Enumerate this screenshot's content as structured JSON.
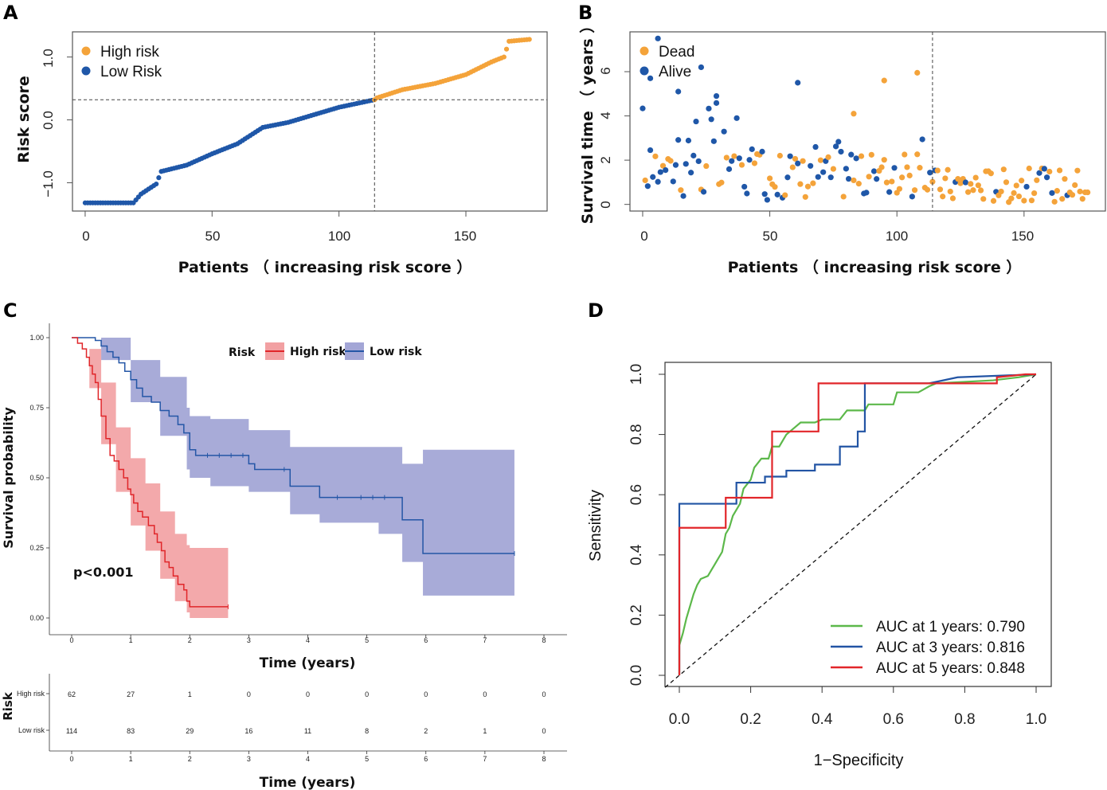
{
  "panels": {
    "A": "A",
    "B": "B",
    "C": "C",
    "D": "D"
  },
  "colors": {
    "high": "#f4a33a",
    "low": "#1f57a8",
    "km_high": "#e0262a",
    "km_high_band": "#f2a0a2",
    "km_low": "#2456a6",
    "km_low_band": "#a3a6d6",
    "roc1": "#5cb84a",
    "roc3": "#2254a4",
    "roc5": "#e2262a"
  },
  "chart_data": [
    {
      "id": "A",
      "type": "scatter",
      "xlabel": "Patients （ increasing risk score ）",
      "ylabel": "Risk score",
      "xticks": [
        "0",
        "50",
        "100",
        "150"
      ],
      "yticks": [
        "−1.0",
        "0.0",
        "1.0"
      ],
      "xlim": [
        -5,
        182
      ],
      "ylim": [
        -1.45,
        1.4
      ],
      "cutoff_x": 114,
      "cutoff_y": 0.32,
      "legend": [
        "High risk",
        "Low Risk"
      ],
      "n_patients": 176
    },
    {
      "id": "B",
      "type": "scatter",
      "xlabel": "Patients （ increasing risk score ）",
      "ylabel": "Survival time （ years ）",
      "xticks": [
        "0",
        "50",
        "100",
        "150"
      ],
      "yticks": [
        "0",
        "2",
        "4",
        "6"
      ],
      "xlim": [
        -5,
        182
      ],
      "ylim": [
        -0.3,
        7.8
      ],
      "cutoff_x": 114,
      "legend": [
        "Dead",
        "Alive"
      ]
    },
    {
      "id": "C",
      "type": "line",
      "title": "Risk",
      "xlabel": "Time (years)",
      "ylabel": "Survival probability",
      "xticks": [
        "0",
        "1",
        "2",
        "3",
        "4",
        "5",
        "6",
        "7",
        "8"
      ],
      "yticks": [
        "0.00",
        "0.25",
        "0.50",
        "0.75",
        "1.00"
      ],
      "xlim": [
        -0.4,
        8.4
      ],
      "ylim": [
        -0.05,
        1.05
      ],
      "pvalue": "p<0.001",
      "series": [
        {
          "name": "High risk",
          "steps": [
            [
              0,
              1.0
            ],
            [
              0.1,
              0.98
            ],
            [
              0.18,
              0.96
            ],
            [
              0.25,
              0.93
            ],
            [
              0.3,
              0.9
            ],
            [
              0.35,
              0.87
            ],
            [
              0.4,
              0.84
            ],
            [
              0.45,
              0.78
            ],
            [
              0.5,
              0.72
            ],
            [
              0.58,
              0.64
            ],
            [
              0.65,
              0.58
            ],
            [
              0.72,
              0.56
            ],
            [
              0.8,
              0.53
            ],
            [
              0.88,
              0.5
            ],
            [
              0.95,
              0.46
            ],
            [
              1.0,
              0.44
            ],
            [
              1.05,
              0.41
            ],
            [
              1.12,
              0.38
            ],
            [
              1.2,
              0.36
            ],
            [
              1.3,
              0.33
            ],
            [
              1.4,
              0.3
            ],
            [
              1.45,
              0.27
            ],
            [
              1.52,
              0.24
            ],
            [
              1.58,
              0.2
            ],
            [
              1.65,
              0.18
            ],
            [
              1.72,
              0.15
            ],
            [
              1.8,
              0.12
            ],
            [
              1.9,
              0.1
            ],
            [
              1.95,
              0.06
            ],
            [
              2.0,
              0.04
            ],
            [
              2.65,
              0.04
            ]
          ],
          "lower": [
            [
              0,
              1.0
            ],
            [
              0.3,
              0.82
            ],
            [
              0.5,
              0.62
            ],
            [
              0.75,
              0.45
            ],
            [
              1.0,
              0.33
            ],
            [
              1.25,
              0.24
            ],
            [
              1.5,
              0.14
            ],
            [
              1.75,
              0.06
            ],
            [
              1.95,
              0.02
            ],
            [
              2.0,
              0.0
            ],
            [
              2.65,
              0.0
            ]
          ],
          "upper": [
            [
              0,
              1.0
            ],
            [
              0.3,
              0.96
            ],
            [
              0.5,
              0.84
            ],
            [
              0.75,
              0.68
            ],
            [
              1.0,
              0.57
            ],
            [
              1.25,
              0.48
            ],
            [
              1.5,
              0.38
            ],
            [
              1.75,
              0.3
            ],
            [
              1.95,
              0.26
            ],
            [
              2.0,
              0.25
            ],
            [
              2.65,
              0.25
            ]
          ]
        },
        {
          "name": "Low risk",
          "steps": [
            [
              0,
              1.0
            ],
            [
              0.4,
              0.99
            ],
            [
              0.5,
              0.97
            ],
            [
              0.6,
              0.95
            ],
            [
              0.7,
              0.93
            ],
            [
              0.8,
              0.91
            ],
            [
              0.9,
              0.88
            ],
            [
              1.0,
              0.85
            ],
            [
              1.1,
              0.82
            ],
            [
              1.2,
              0.79
            ],
            [
              1.35,
              0.77
            ],
            [
              1.5,
              0.74
            ],
            [
              1.65,
              0.72
            ],
            [
              1.8,
              0.69
            ],
            [
              1.9,
              0.66
            ],
            [
              2.0,
              0.6
            ],
            [
              2.1,
              0.58
            ],
            [
              2.35,
              0.58
            ],
            [
              3.0,
              0.55
            ],
            [
              3.1,
              0.53
            ],
            [
              3.7,
              0.47
            ],
            [
              4.2,
              0.43
            ],
            [
              5.2,
              0.43
            ],
            [
              5.6,
              0.35
            ],
            [
              5.95,
              0.23
            ],
            [
              7.5,
              0.23
            ]
          ],
          "lower": [
            [
              0,
              1.0
            ],
            [
              0.5,
              0.92
            ],
            [
              1.0,
              0.77
            ],
            [
              1.5,
              0.65
            ],
            [
              1.95,
              0.53
            ],
            [
              2.0,
              0.5
            ],
            [
              2.35,
              0.47
            ],
            [
              3.0,
              0.45
            ],
            [
              3.7,
              0.37
            ],
            [
              4.2,
              0.34
            ],
            [
              5.2,
              0.3
            ],
            [
              5.6,
              0.2
            ],
            [
              5.95,
              0.08
            ],
            [
              7.5,
              0.08
            ]
          ],
          "upper": [
            [
              0,
              1.0
            ],
            [
              0.5,
              1.0
            ],
            [
              1.0,
              0.92
            ],
            [
              1.5,
              0.86
            ],
            [
              1.95,
              0.75
            ],
            [
              2.0,
              0.72
            ],
            [
              2.35,
              0.71
            ],
            [
              3.0,
              0.67
            ],
            [
              3.7,
              0.61
            ],
            [
              4.2,
              0.61
            ],
            [
              5.2,
              0.61
            ],
            [
              5.6,
              0.55
            ],
            [
              5.95,
              0.6
            ],
            [
              7.5,
              0.6
            ]
          ]
        }
      ]
    },
    {
      "id": "C-risk-table",
      "type": "table",
      "ylabel": "Risk",
      "xlabel": "Time (years)",
      "xticks": [
        "0",
        "1",
        "2",
        "3",
        "4",
        "5",
        "6",
        "7",
        "8"
      ],
      "rows": [
        {
          "name": "High risk",
          "values": [
            "62",
            "27",
            "1",
            "0",
            "0",
            "0",
            "0",
            "0",
            "0"
          ]
        },
        {
          "name": "Low risk",
          "values": [
            "114",
            "83",
            "29",
            "16",
            "11",
            "8",
            "2",
            "1",
            "0"
          ]
        }
      ]
    },
    {
      "id": "D",
      "type": "line",
      "xlabel": "1−Specificity",
      "ylabel": "Sensitivity",
      "xticks": [
        "0.0",
        "0.2",
        "0.4",
        "0.6",
        "0.8",
        "1.0"
      ],
      "yticks": [
        "0.0",
        "0.2",
        "0.4",
        "0.6",
        "0.8",
        "1.0"
      ],
      "xlim": [
        -0.04,
        1.04
      ],
      "ylim": [
        -0.04,
        1.04
      ],
      "series": [
        {
          "name": "AUC at 1 years: 0.790",
          "points": [
            [
              0,
              0
            ],
            [
              0,
              0.1
            ],
            [
              0.01,
              0.14
            ],
            [
              0.02,
              0.19
            ],
            [
              0.03,
              0.23
            ],
            [
              0.04,
              0.27
            ],
            [
              0.05,
              0.3
            ],
            [
              0.06,
              0.32
            ],
            [
              0.08,
              0.33
            ],
            [
              0.09,
              0.35
            ],
            [
              0.1,
              0.37
            ],
            [
              0.11,
              0.39
            ],
            [
              0.12,
              0.41
            ],
            [
              0.13,
              0.47
            ],
            [
              0.14,
              0.49
            ],
            [
              0.15,
              0.53
            ],
            [
              0.17,
              0.57
            ],
            [
              0.18,
              0.62
            ],
            [
              0.2,
              0.65
            ],
            [
              0.21,
              0.69
            ],
            [
              0.23,
              0.72
            ],
            [
              0.25,
              0.72
            ],
            [
              0.26,
              0.76
            ],
            [
              0.28,
              0.76
            ],
            [
              0.3,
              0.8
            ],
            [
              0.32,
              0.82
            ],
            [
              0.34,
              0.84
            ],
            [
              0.38,
              0.84
            ],
            [
              0.4,
              0.85
            ],
            [
              0.45,
              0.85
            ],
            [
              0.47,
              0.88
            ],
            [
              0.52,
              0.88
            ],
            [
              0.53,
              0.9
            ],
            [
              0.6,
              0.9
            ],
            [
              0.61,
              0.94
            ],
            [
              0.67,
              0.94
            ],
            [
              0.7,
              0.96
            ],
            [
              0.72,
              0.97
            ],
            [
              0.88,
              0.98
            ],
            [
              0.95,
              0.99
            ],
            [
              1,
              1
            ]
          ]
        },
        {
          "name": "AUC at 3 years: 0.816",
          "points": [
            [
              0,
              0
            ],
            [
              0,
              0.57
            ],
            [
              0.16,
              0.57
            ],
            [
              0.16,
              0.64
            ],
            [
              0.24,
              0.64
            ],
            [
              0.24,
              0.66
            ],
            [
              0.3,
              0.66
            ],
            [
              0.3,
              0.68
            ],
            [
              0.38,
              0.68
            ],
            [
              0.38,
              0.7
            ],
            [
              0.45,
              0.7
            ],
            [
              0.45,
              0.76
            ],
            [
              0.5,
              0.76
            ],
            [
              0.5,
              0.81
            ],
            [
              0.52,
              0.81
            ],
            [
              0.52,
              0.97
            ],
            [
              0.7,
              0.97
            ],
            [
              0.78,
              0.99
            ],
            [
              1,
              1
            ]
          ]
        },
        {
          "name": "AUC at 5 years: 0.848",
          "points": [
            [
              0,
              0
            ],
            [
              0,
              0.49
            ],
            [
              0.13,
              0.49
            ],
            [
              0.13,
              0.59
            ],
            [
              0.26,
              0.59
            ],
            [
              0.26,
              0.81
            ],
            [
              0.39,
              0.81
            ],
            [
              0.39,
              0.97
            ],
            [
              0.89,
              0.97
            ],
            [
              0.89,
              0.99
            ],
            [
              0.97,
              1
            ],
            [
              1,
              1
            ]
          ]
        }
      ]
    }
  ]
}
